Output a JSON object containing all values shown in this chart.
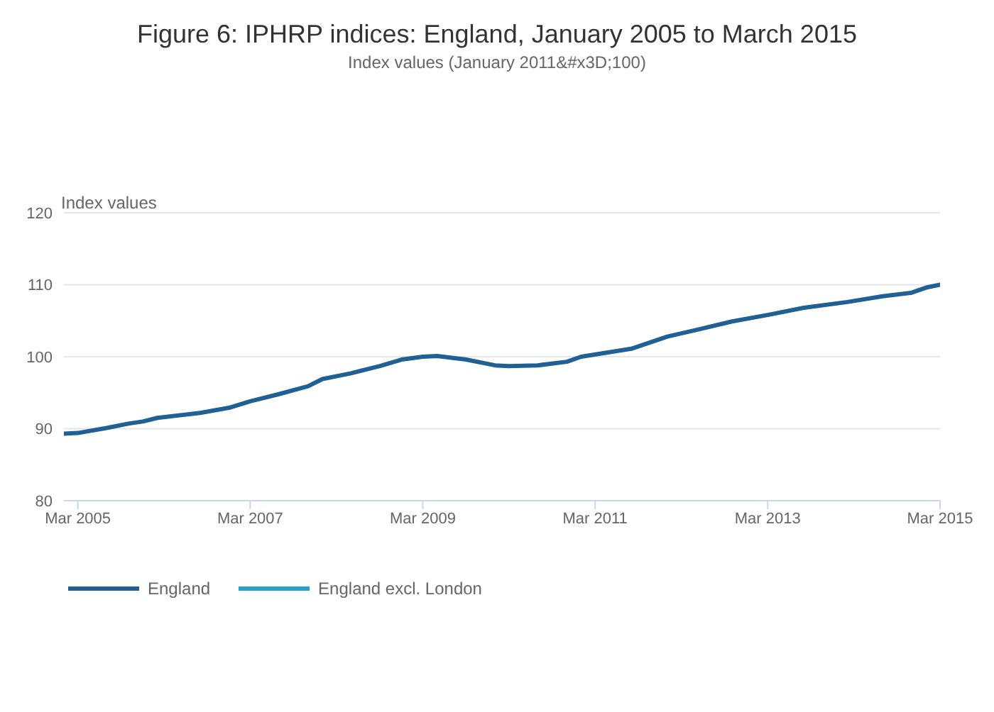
{
  "chart_data": {
    "type": "line",
    "title": "Figure 6: IPHRP indices: England, January 2005 to March 2015",
    "subtitle": "Index values (January 2011&#x3D;100)",
    "ylabel": "Index values",
    "x": [
      "2005-01",
      "2005-03",
      "2005-07",
      "2005-10",
      "2005-12",
      "2006-02",
      "2006-08",
      "2006-12",
      "2007-03",
      "2007-07",
      "2007-11",
      "2008-01",
      "2008-05",
      "2008-09",
      "2008-12",
      "2009-03",
      "2009-05",
      "2009-09",
      "2010-01",
      "2010-03",
      "2010-07",
      "2010-11",
      "2011-01",
      "2011-08",
      "2012-01",
      "2012-05",
      "2012-10",
      "2013-03",
      "2013-08",
      "2014-02",
      "2014-07",
      "2014-11",
      "2015-01",
      "2015-03"
    ],
    "series": [
      {
        "name": "England",
        "color": "#206095",
        "values": [
          89.3,
          89.4,
          90.1,
          90.7,
          91.0,
          91.5,
          92.2,
          92.9,
          93.8,
          94.8,
          95.9,
          96.9,
          97.7,
          98.7,
          99.6,
          100.0,
          100.1,
          99.6,
          98.8,
          98.7,
          98.8,
          99.3,
          100.0,
          101.1,
          102.8,
          103.7,
          104.9,
          105.8,
          106.8,
          107.6,
          108.4,
          108.9,
          109.6,
          110.0
        ]
      },
      {
        "name": "England excl. London",
        "color": "#27a0cc",
        "values": [
          null,
          null,
          null,
          null,
          null,
          null,
          null,
          null,
          null,
          null,
          null,
          null,
          null,
          null,
          null,
          null,
          null,
          null,
          null,
          null,
          null,
          null,
          null,
          null,
          null,
          null,
          null,
          null,
          null,
          null,
          null,
          null,
          null,
          null
        ]
      }
    ],
    "xlim": [
      "2005-01",
      "2015-03"
    ],
    "xticks": [
      {
        "value": "2005-03",
        "label": "Mar 2005"
      },
      {
        "value": "2007-03",
        "label": "Mar 2007"
      },
      {
        "value": "2009-03",
        "label": "Mar 2009"
      },
      {
        "value": "2011-03",
        "label": "Mar 2011"
      },
      {
        "value": "2013-03",
        "label": "Mar 2013"
      },
      {
        "value": "2015-03",
        "label": "Mar 2015"
      }
    ],
    "ylim": [
      80,
      120
    ],
    "yticks": [
      80,
      90,
      100,
      110,
      120
    ],
    "grid": "y",
    "legend": "bottom left",
    "marker": "none",
    "line_style": "solid"
  }
}
